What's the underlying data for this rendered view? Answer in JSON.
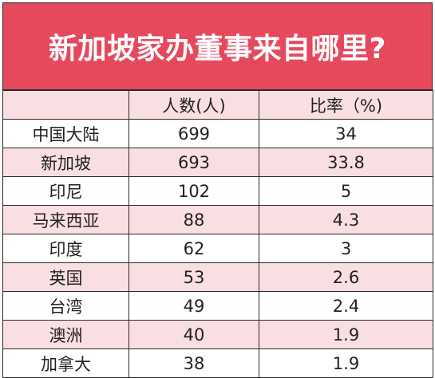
{
  "title": "新加坡家办董事来自哪里?",
  "colors": {
    "header_bg": "#e7495c",
    "row_pink": "#f9dfe2",
    "row_white": "#ffffff",
    "border": "#2b2b2b"
  },
  "chart_data": {
    "type": "table",
    "title": "新加坡家办董事来自哪里?",
    "columns": [
      "",
      "人数(人)",
      "比率（%)"
    ],
    "rows": [
      {
        "region": "中国大陆",
        "count": "699",
        "percent": "34"
      },
      {
        "region": "新加坡",
        "count": "693",
        "percent": "33.8"
      },
      {
        "region": "印尼",
        "count": "102",
        "percent": "5"
      },
      {
        "region": "马来西亚",
        "count": "88",
        "percent": "4.3"
      },
      {
        "region": "印度",
        "count": "62",
        "percent": "3"
      },
      {
        "region": "英国",
        "count": "53",
        "percent": "2.6"
      },
      {
        "region": "台湾",
        "count": "49",
        "percent": "2.4"
      },
      {
        "region": "澳洲",
        "count": "40",
        "percent": "1.9"
      },
      {
        "region": "加拿大",
        "count": "38",
        "percent": "1.9"
      }
    ]
  }
}
